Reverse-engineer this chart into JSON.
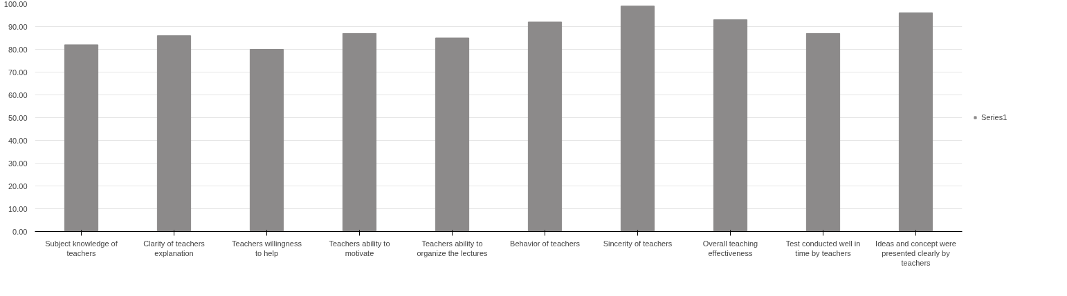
{
  "chart_data": {
    "type": "bar",
    "categories": [
      "Subject knowledge of teachers",
      "Clarity of teachers explanation",
      "Teachers willingness to help",
      "Teachers ability to motivate",
      "Teachers ability to organize the lectures",
      "Behavior of teachers",
      "Sincerity of teachers",
      "Overall teaching effectiveness",
      "Test conducted well in time by teachers",
      "Ideas and concept were presented clearly by teachers"
    ],
    "series": [
      {
        "name": "Series1",
        "color": "#8c8a8a",
        "values": [
          82,
          86,
          80,
          87,
          85,
          92,
          99,
          93,
          87,
          96
        ]
      }
    ],
    "ylim": [
      0,
      100
    ],
    "yticks": [
      {
        "value": 0,
        "label": "0.00"
      },
      {
        "value": 10,
        "label": "10.00"
      },
      {
        "value": 20,
        "label": "20.00"
      },
      {
        "value": 30,
        "label": "30.00"
      },
      {
        "value": 40,
        "label": "40.00"
      },
      {
        "value": 50,
        "label": "50.00"
      },
      {
        "value": 60,
        "label": "60.00"
      },
      {
        "value": 70,
        "label": "70.00"
      },
      {
        "value": 80,
        "label": "80.00"
      },
      {
        "value": 90,
        "label": "90.00"
      },
      {
        "value": 100,
        "label": "100.00"
      }
    ],
    "grid": "y",
    "legend": "right"
  }
}
